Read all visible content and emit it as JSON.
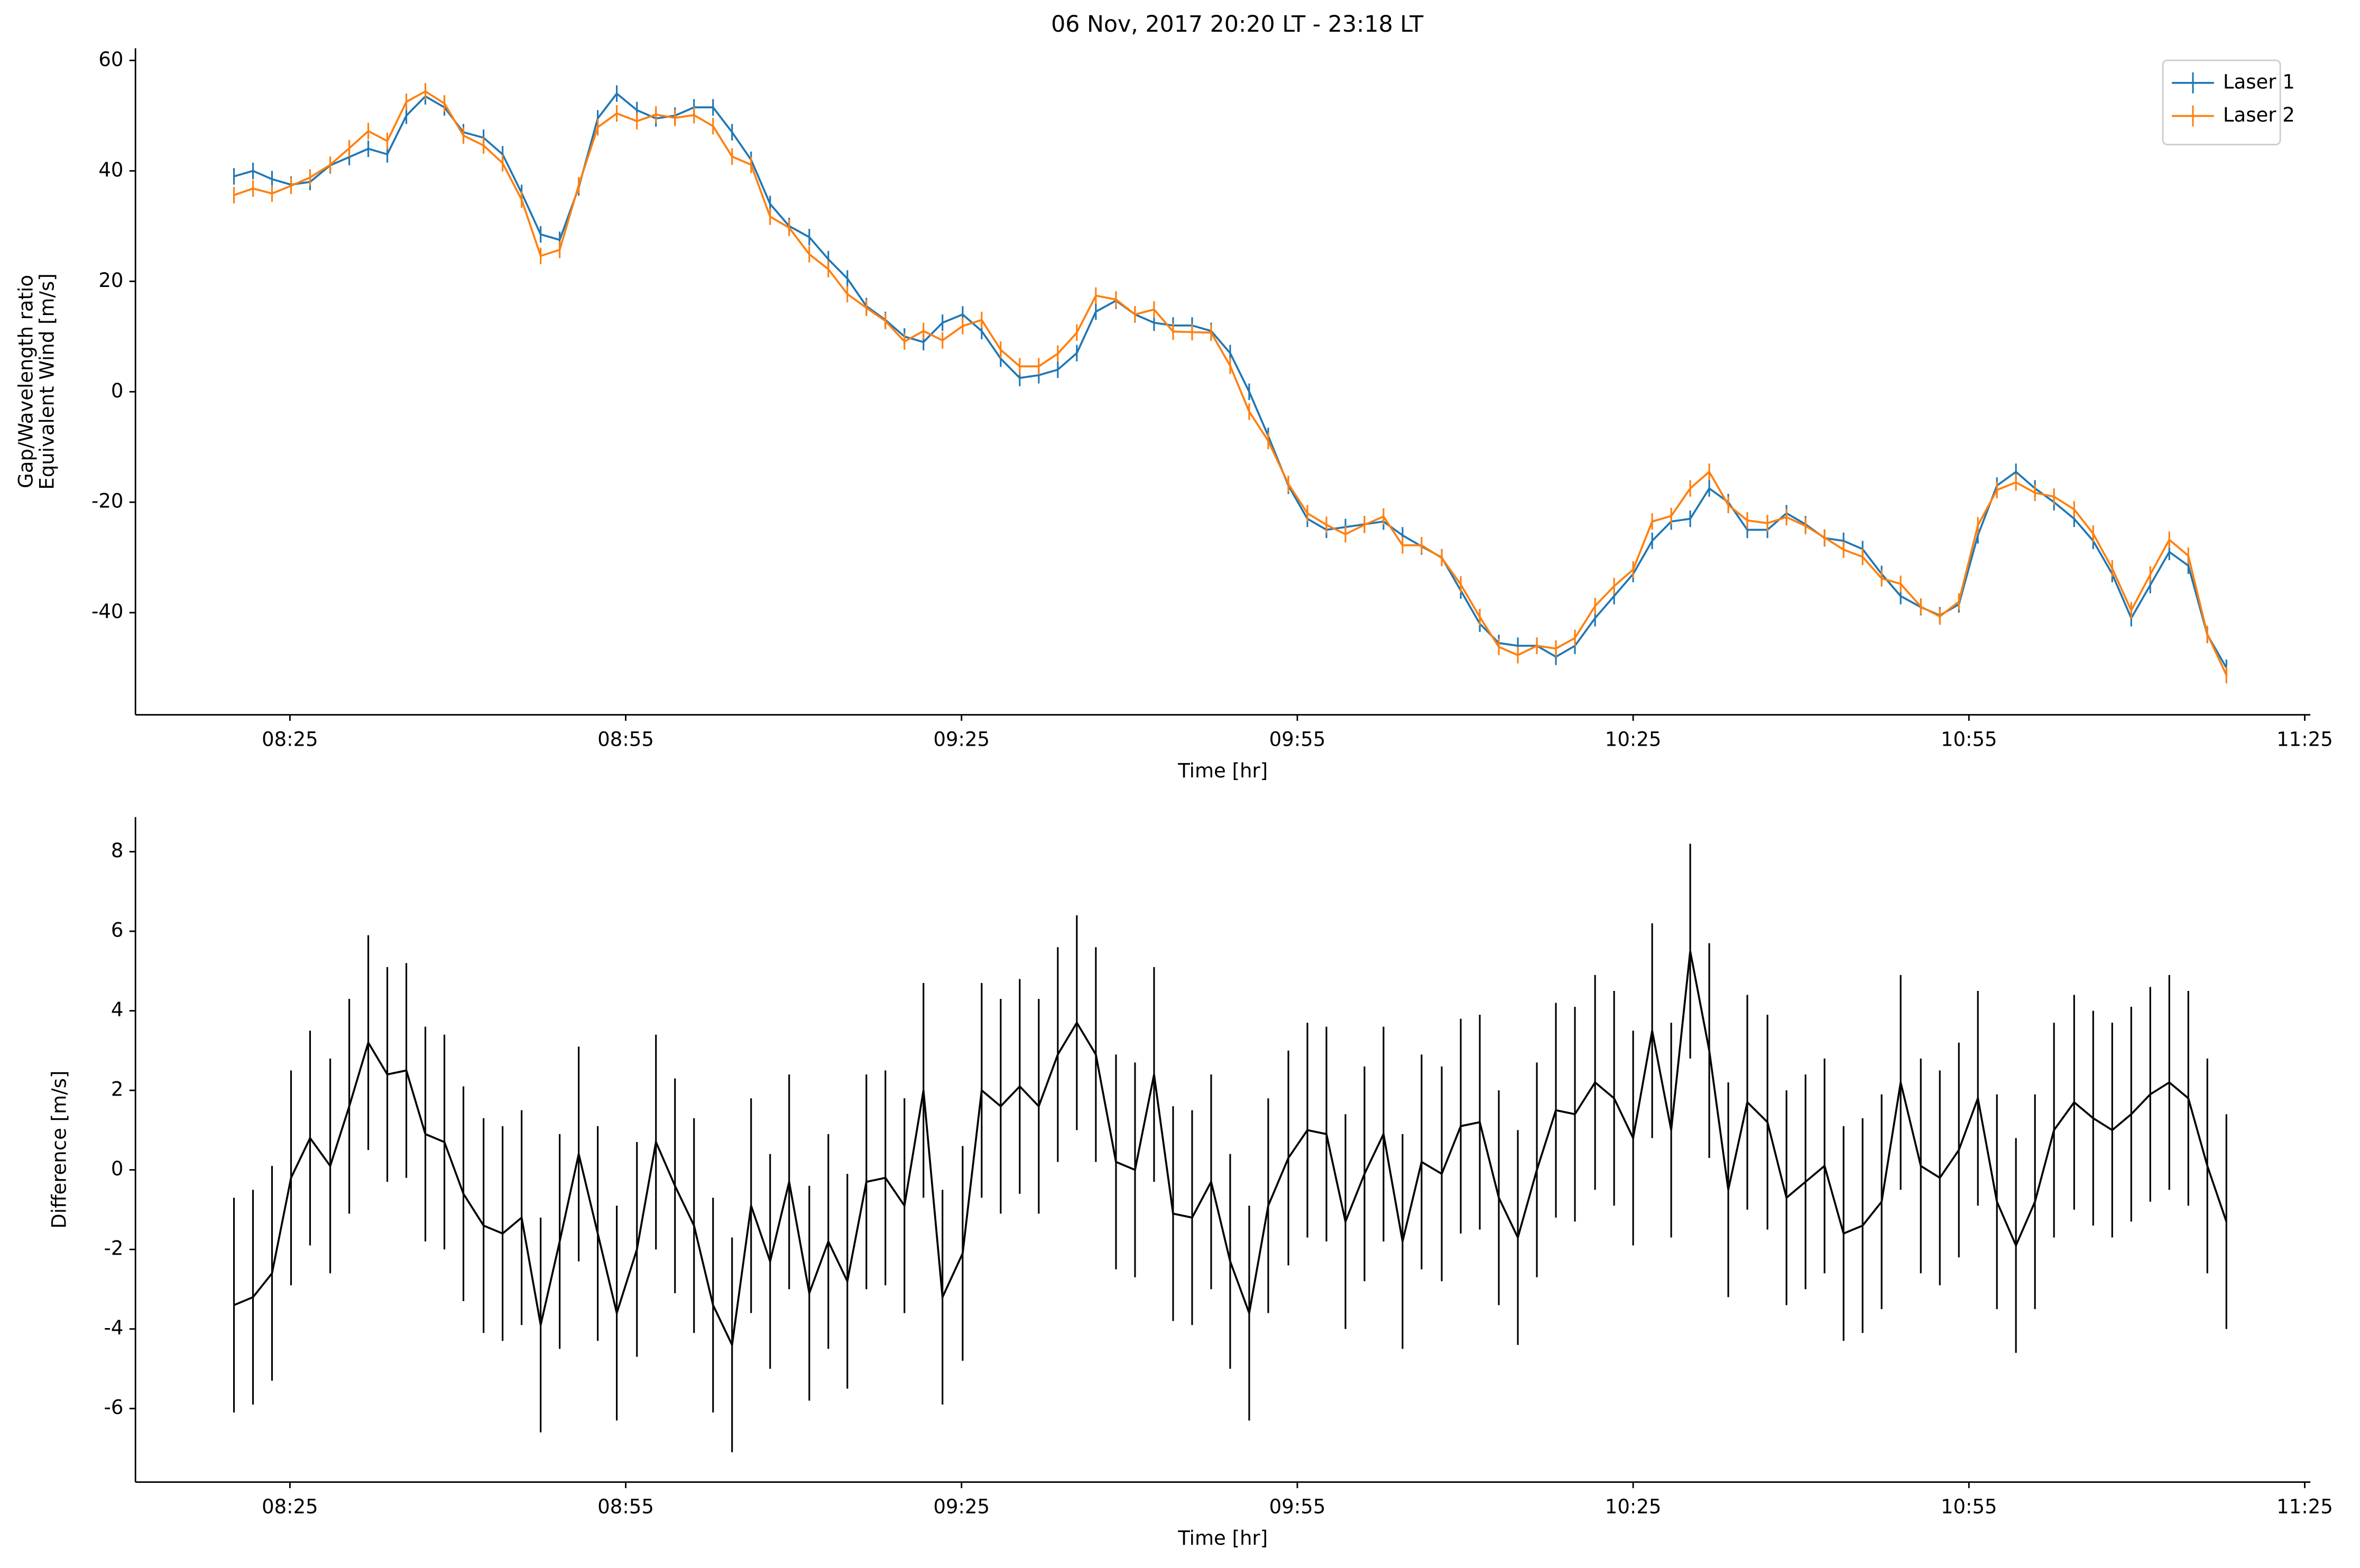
{
  "chart_data": [
    {
      "type": "line",
      "title": "06 Nov, 2017 20:20 LT - 23:18 LT",
      "xlabel": "Time [hr]",
      "ylabel": [
        "Gap/Wavelength ratio",
        "Equivalent Wind [m/s]"
      ],
      "legend": "upper right",
      "xlim": [
        491.2,
        685.5
      ],
      "ylim": [
        -58.5,
        62.2
      ],
      "xticks": [
        {
          "value": 505,
          "label": "08:25"
        },
        {
          "value": 535,
          "label": "08:55"
        },
        {
          "value": 565,
          "label": "09:25"
        },
        {
          "value": 595,
          "label": "09:55"
        },
        {
          "value": 625,
          "label": "10:25"
        },
        {
          "value": 655,
          "label": "10:55"
        },
        {
          "value": 685,
          "label": "11:25"
        }
      ],
      "yticks": [
        -40,
        -20,
        0,
        20,
        40,
        60
      ],
      "x": [
        500.0,
        501.7,
        503.4,
        505.1,
        506.8,
        508.6,
        510.3,
        512.0,
        513.7,
        515.4,
        517.1,
        518.8,
        520.5,
        522.3,
        524.0,
        525.7,
        527.4,
        529.1,
        530.8,
        532.5,
        534.2,
        536.0,
        537.7,
        539.4,
        541.1,
        542.8,
        544.5,
        546.2,
        547.9,
        549.6,
        551.4,
        553.1,
        554.8,
        556.5,
        558.2,
        559.9,
        561.6,
        563.3,
        565.1,
        566.8,
        568.5,
        570.2,
        571.9,
        573.6,
        575.3,
        577.0,
        578.8,
        580.5,
        582.2,
        583.9,
        585.6,
        587.3,
        589.0,
        590.7,
        592.4,
        594.2,
        595.9,
        597.6,
        599.3,
        601.0,
        602.7,
        604.4,
        606.1,
        607.9,
        609.6,
        611.3,
        613.0,
        614.7,
        616.4,
        618.1,
        619.8,
        621.6,
        623.3,
        625.0,
        626.7,
        628.4,
        630.1,
        631.8,
        633.5,
        635.2,
        637.0,
        638.7,
        640.4,
        642.1,
        643.8,
        645.5,
        647.2,
        648.9,
        650.7,
        652.4,
        654.1,
        655.8,
        657.5,
        659.2,
        660.9,
        662.6,
        664.4,
        666.1,
        667.8,
        669.5,
        671.2,
        672.9,
        674.6,
        676.3,
        678.0
      ],
      "series": [
        {
          "name": "Laser 1",
          "color": "#1f77b4",
          "values": [
            39,
            40,
            38.5,
            37.5,
            38,
            41,
            42.5,
            44,
            43,
            50,
            53.5,
            51.5,
            47,
            46,
            43,
            36,
            28.5,
            27.5,
            37,
            49.5,
            54,
            51,
            49.5,
            50,
            51.5,
            51.5,
            47,
            42,
            34,
            30,
            28,
            24,
            20.5,
            15.5,
            13,
            10,
            9,
            12.5,
            14,
            11,
            6,
            2.5,
            3,
            4,
            7,
            14.5,
            16.5,
            14,
            12.5,
            12,
            12,
            11,
            7,
            0,
            -8,
            -17,
            -23,
            -25,
            -24.5,
            -24,
            -23.5,
            -26,
            -28,
            -30,
            -36,
            -42,
            -45.5,
            -46,
            -46,
            -48,
            -46,
            -41,
            -37,
            -33,
            -27,
            -23.5,
            -23,
            -17.5,
            -20,
            -25,
            -25,
            -22,
            -24,
            -26.5,
            -27,
            -28.5,
            -33,
            -37,
            -39,
            -40.5,
            -38.5,
            -26,
            -17,
            -14.5,
            -17.5,
            -20,
            -23,
            -27,
            -33,
            -41,
            -35,
            -29,
            -31.5,
            -44,
            -50
          ],
          "errors": [
            1.5,
            1.5,
            1.5,
            1.5,
            1.5,
            1.5,
            1.5,
            1.5,
            1.5,
            1.5,
            1.5,
            1.5,
            1.5,
            1.5,
            1.5,
            1.5,
            1.5,
            1.5,
            1.5,
            1.5,
            1.5,
            1.5,
            1.5,
            1.5,
            1.5,
            1.5,
            1.5,
            1.5,
            1.5,
            1.5,
            1.5,
            1.5,
            1.5,
            1.5,
            1.5,
            1.5,
            1.5,
            1.5,
            1.5,
            1.5,
            1.5,
            1.5,
            1.5,
            1.5,
            1.5,
            1.5,
            1.5,
            1.5,
            1.5,
            1.5,
            1.5,
            1.5,
            1.5,
            1.5,
            1.5,
            1.5,
            1.5,
            1.5,
            1.5,
            1.5,
            1.5,
            1.5,
            1.5,
            1.5,
            1.5,
            1.5,
            1.5,
            1.5,
            1.5,
            1.5,
            1.5,
            1.5,
            1.5,
            1.5,
            1.5,
            1.5,
            1.5,
            1.5,
            1.5,
            1.5,
            1.5,
            1.5,
            1.5,
            1.5,
            1.5,
            1.5,
            1.5,
            1.5,
            1.5,
            1.5,
            1.5,
            1.5,
            1.5,
            1.5,
            1.5,
            1.5,
            1.5,
            1.5,
            1.5,
            1.5,
            1.5,
            1.5,
            1.5,
            1.5,
            1.5
          ]
        },
        {
          "name": "Laser 2",
          "color": "#ff7f0e",
          "values": [
            35.6,
            36.8,
            35.9,
            37.3,
            38.8,
            41.1,
            44.1,
            47.2,
            45.4,
            52.5,
            54.4,
            52.2,
            46.4,
            44.6,
            41.4,
            34.8,
            24.6,
            25.7,
            37.4,
            47.9,
            50.4,
            49.0,
            50.2,
            49.6,
            50.1,
            48.1,
            42.6,
            41.1,
            31.7,
            29.7,
            24.9,
            22.2,
            17.7,
            15.2,
            12.8,
            9.1,
            11.0,
            9.3,
            11.9,
            13.0,
            7.6,
            4.6,
            4.6,
            6.9,
            10.7,
            17.4,
            16.7,
            14.0,
            14.9,
            10.9,
            10.8,
            10.7,
            4.7,
            -3.6,
            -8.9,
            -16.7,
            -22.0,
            -24.1,
            -25.8,
            -24.1,
            -22.6,
            -27.8,
            -27.8,
            -30.1,
            -34.9,
            -40.8,
            -46.2,
            -47.7,
            -46.0,
            -46.5,
            -44.6,
            -38.8,
            -35.2,
            -32.2,
            -23.5,
            -22.5,
            -17.5,
            -14.5,
            -20.5,
            -23.3,
            -23.8,
            -22.7,
            -24.3,
            -26.4,
            -28.6,
            -29.9,
            -33.8,
            -34.8,
            -38.9,
            -40.7,
            -38.0,
            -24.2,
            -17.8,
            -16.4,
            -18.3,
            -19.0,
            -21.3,
            -25.7,
            -32.0,
            -39.6,
            -33.1,
            -26.8,
            -29.7,
            -43.9,
            -51.3
          ],
          "errors": [
            1.5,
            1.5,
            1.5,
            1.5,
            1.5,
            1.5,
            1.5,
            1.5,
            1.5,
            1.5,
            1.5,
            1.5,
            1.5,
            1.5,
            1.5,
            1.5,
            1.5,
            1.5,
            1.5,
            1.5,
            1.5,
            1.5,
            1.5,
            1.5,
            1.5,
            1.5,
            1.5,
            1.5,
            1.5,
            1.5,
            1.5,
            1.5,
            1.5,
            1.5,
            1.5,
            1.5,
            1.5,
            1.5,
            1.5,
            1.5,
            1.5,
            1.5,
            1.5,
            1.5,
            1.5,
            1.5,
            1.5,
            1.5,
            1.5,
            1.5,
            1.5,
            1.5,
            1.5,
            1.5,
            1.5,
            1.5,
            1.5,
            1.5,
            1.5,
            1.5,
            1.5,
            1.5,
            1.5,
            1.5,
            1.5,
            1.5,
            1.5,
            1.5,
            1.5,
            1.5,
            1.5,
            1.5,
            1.5,
            1.5,
            1.5,
            1.5,
            1.5,
            1.5,
            1.5,
            1.5,
            1.5,
            1.5,
            1.5,
            1.5,
            1.5,
            1.5,
            1.5,
            1.5,
            1.5,
            1.5,
            1.5,
            1.5,
            1.5,
            1.5,
            1.5,
            1.5,
            1.5,
            1.5,
            1.5,
            1.5,
            1.5,
            1.5,
            1.5,
            1.5,
            1.5
          ]
        }
      ]
    },
    {
      "type": "line",
      "xlabel": "Time [hr]",
      "ylabel": [
        "Difference [m/s]"
      ],
      "xlim": [
        491.2,
        685.5
      ],
      "ylim": [
        -7.85,
        8.87
      ],
      "xticks": [
        {
          "value": 505,
          "label": "08:25"
        },
        {
          "value": 535,
          "label": "08:55"
        },
        {
          "value": 565,
          "label": "09:25"
        },
        {
          "value": 595,
          "label": "09:55"
        },
        {
          "value": 625,
          "label": "10:25"
        },
        {
          "value": 655,
          "label": "10:55"
        },
        {
          "value": 685,
          "label": "11:25"
        }
      ],
      "yticks": [
        -6,
        -4,
        -2,
        0,
        2,
        4,
        6,
        8
      ],
      "x": [
        500.0,
        501.7,
        503.4,
        505.1,
        506.8,
        508.6,
        510.3,
        512.0,
        513.7,
        515.4,
        517.1,
        518.8,
        520.5,
        522.3,
        524.0,
        525.7,
        527.4,
        529.1,
        530.8,
        532.5,
        534.2,
        536.0,
        537.7,
        539.4,
        541.1,
        542.8,
        544.5,
        546.2,
        547.9,
        549.6,
        551.4,
        553.1,
        554.8,
        556.5,
        558.2,
        559.9,
        561.6,
        563.3,
        565.1,
        566.8,
        568.5,
        570.2,
        571.9,
        573.6,
        575.3,
        577.0,
        578.8,
        580.5,
        582.2,
        583.9,
        585.6,
        587.3,
        589.0,
        590.7,
        592.4,
        594.2,
        595.9,
        597.6,
        599.3,
        601.0,
        602.7,
        604.4,
        606.1,
        607.9,
        609.6,
        611.3,
        613.0,
        614.7,
        616.4,
        618.1,
        619.8,
        621.6,
        623.3,
        625.0,
        626.7,
        628.4,
        630.1,
        631.8,
        633.5,
        635.2,
        637.0,
        638.7,
        640.4,
        642.1,
        643.8,
        645.5,
        647.2,
        648.9,
        650.7,
        652.4,
        654.1,
        655.8,
        657.5,
        659.2,
        660.9,
        662.6,
        664.4,
        666.1,
        667.8,
        669.5,
        671.2,
        672.9,
        674.6,
        676.3,
        678.0
      ],
      "series": [
        {
          "color": "#000000",
          "values": [
            -3.4,
            -3.2,
            -2.6,
            -0.2,
            0.8,
            0.1,
            1.6,
            3.2,
            2.4,
            2.5,
            0.9,
            0.7,
            -0.6,
            -1.4,
            -1.6,
            -1.2,
            -3.9,
            -1.8,
            0.4,
            -1.6,
            -3.6,
            -2.0,
            0.7,
            -0.4,
            -1.4,
            -3.4,
            -4.4,
            -0.9,
            -2.3,
            -0.3,
            -3.1,
            -1.8,
            -2.8,
            -0.3,
            -0.2,
            -0.9,
            2.0,
            -3.2,
            -2.1,
            2.0,
            1.6,
            2.1,
            1.6,
            2.9,
            3.7,
            2.9,
            0.2,
            0.0,
            2.4,
            -1.1,
            -1.2,
            -0.3,
            -2.3,
            -3.6,
            -0.9,
            0.3,
            1.0,
            0.9,
            -1.3,
            -0.1,
            0.9,
            -1.8,
            0.2,
            -0.1,
            1.1,
            1.2,
            -0.7,
            -1.7,
            0.0,
            1.5,
            1.4,
            2.2,
            1.8,
            0.8,
            3.5,
            1.0,
            5.5,
            3.0,
            -0.5,
            1.7,
            1.2,
            -0.7,
            -0.3,
            0.1,
            -1.6,
            -1.4,
            -0.8,
            2.2,
            0.1,
            -0.2,
            0.5,
            1.8,
            -0.8,
            -1.9,
            -0.8,
            1.0,
            1.7,
            1.3,
            1.0,
            1.4,
            1.9,
            2.2,
            1.8,
            0.1,
            -1.3
          ],
          "errors": [
            2.7,
            2.7,
            2.7,
            2.7,
            2.7,
            2.7,
            2.7,
            2.7,
            2.7,
            2.7,
            2.7,
            2.7,
            2.7,
            2.7,
            2.7,
            2.7,
            2.7,
            2.7,
            2.7,
            2.7,
            2.7,
            2.7,
            2.7,
            2.7,
            2.7,
            2.7,
            2.7,
            2.7,
            2.7,
            2.7,
            2.7,
            2.7,
            2.7,
            2.7,
            2.7,
            2.7,
            2.7,
            2.7,
            2.7,
            2.7,
            2.7,
            2.7,
            2.7,
            2.7,
            2.7,
            2.7,
            2.7,
            2.7,
            2.7,
            2.7,
            2.7,
            2.7,
            2.7,
            2.7,
            2.7,
            2.7,
            2.7,
            2.7,
            2.7,
            2.7,
            2.7,
            2.7,
            2.7,
            2.7,
            2.7,
            2.7,
            2.7,
            2.7,
            2.7,
            2.7,
            2.7,
            2.7,
            2.7,
            2.7,
            2.7,
            2.7,
            2.7,
            2.7,
            2.7,
            2.7,
            2.7,
            2.7,
            2.7,
            2.7,
            2.7,
            2.7,
            2.7,
            2.7,
            2.7,
            2.7,
            2.7,
            2.7,
            2.7,
            2.7,
            2.7,
            2.7,
            2.7,
            2.7,
            2.7,
            2.7,
            2.7,
            2.7,
            2.7,
            2.7,
            2.7
          ]
        }
      ]
    }
  ]
}
